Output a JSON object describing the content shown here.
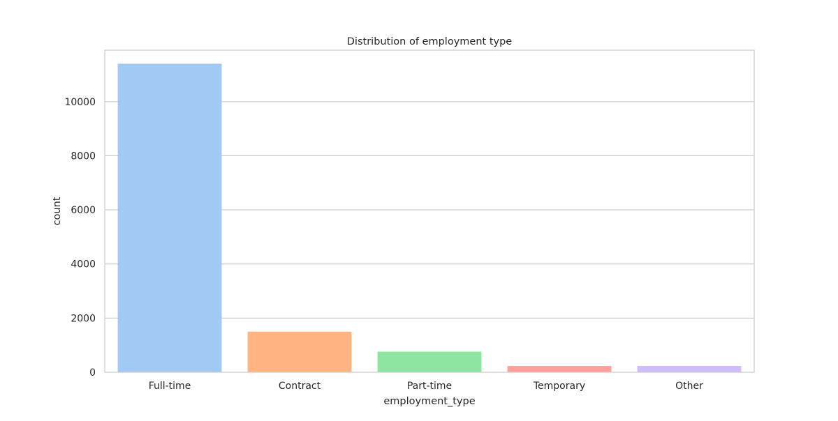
{
  "chart_data": {
    "type": "bar",
    "title": "Distribution of employment type",
    "xlabel": "employment_type",
    "ylabel": "count",
    "categories": [
      "Full-time",
      "Contract",
      "Part-time",
      "Temporary",
      "Other"
    ],
    "values": [
      11400,
      1500,
      760,
      230,
      230
    ],
    "colors": [
      "#a1c9f4",
      "#ffb482",
      "#8de5a1",
      "#ff9f9b",
      "#d0bbff"
    ],
    "ylim": [
      0,
      11900
    ],
    "yticks": [
      0,
      2000,
      4000,
      6000,
      8000,
      10000
    ],
    "ytick_labels": [
      "0",
      "2000",
      "4000",
      "6000",
      "8000",
      "10000"
    ],
    "grid": true,
    "legend": "none"
  }
}
